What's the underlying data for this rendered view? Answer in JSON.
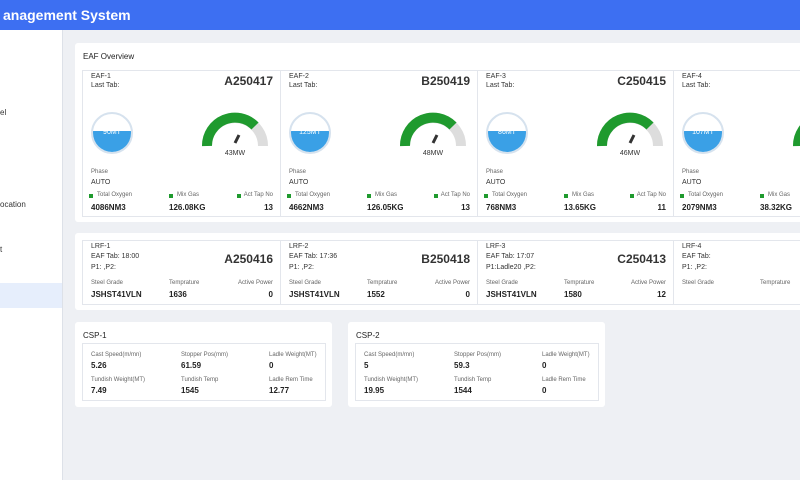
{
  "header": {
    "title": "anagement System"
  },
  "sidebar": {
    "items": [
      "el",
      "ocation",
      "t"
    ]
  },
  "eaf": {
    "title": "EAF Overview",
    "cards": [
      {
        "name": "EAF-1",
        "last_tab": "Last Tab:",
        "code": "A250417",
        "ladle": "90MT",
        "power": "43MW",
        "phase_label": "Phase",
        "phase": "AUTO",
        "metrics": [
          {
            "label": "Total Oxygen",
            "value": "4086NM3"
          },
          {
            "label": "Mix Gas",
            "value": "126.08KG"
          },
          {
            "label": "Act Tap No",
            "value": "13"
          }
        ]
      },
      {
        "name": "EAF-2",
        "last_tab": "Last Tab:",
        "code": "B250419",
        "ladle": "125MT",
        "power": "48MW",
        "phase_label": "Phase",
        "phase": "AUTO",
        "metrics": [
          {
            "label": "Total Oxygen",
            "value": "4662NM3"
          },
          {
            "label": "Mix Gas",
            "value": "126.05KG"
          },
          {
            "label": "Act Tap No",
            "value": "13"
          }
        ]
      },
      {
        "name": "EAF-3",
        "last_tab": "Last Tab:",
        "code": "C250415",
        "ladle": "86MT",
        "power": "46MW",
        "phase_label": "Phase",
        "phase": "AUTO",
        "metrics": [
          {
            "label": "Total Oxygen",
            "value": "768NM3"
          },
          {
            "label": "Mix Gas",
            "value": "13.65KG"
          },
          {
            "label": "Act Tap No",
            "value": "11"
          }
        ]
      },
      {
        "name": "EAF-4",
        "last_tab": "Last Tab:",
        "ladle": "107MT",
        "phase_label": "Phase",
        "phase": "AUTO",
        "metrics": [
          {
            "label": "Total Oxygen",
            "value": "2079NM3"
          },
          {
            "label": "Mix Gas",
            "value": "38.32KG"
          }
        ]
      }
    ]
  },
  "lrf": {
    "cards": [
      {
        "name": "LRF-1",
        "tab": "EAF Tab: 18:00",
        "code": "A250416",
        "p": "P1: ,P2:",
        "metrics": [
          {
            "label": "Steel Grade",
            "value": "JSHST41VLN"
          },
          {
            "label": "Temprature",
            "value": "1636"
          },
          {
            "label": "Active Power",
            "value": "0"
          }
        ]
      },
      {
        "name": "LRF-2",
        "tab": "EAF Tab: 17:36",
        "code": "B250418",
        "p": "P1: ,P2:",
        "metrics": [
          {
            "label": "Steel Grade",
            "value": "JSHST41VLN"
          },
          {
            "label": "Temprature",
            "value": "1552"
          },
          {
            "label": "Active Power",
            "value": "0"
          }
        ]
      },
      {
        "name": "LRF-3",
        "tab": "EAF Tab: 17:07",
        "code": "C250413",
        "p": "P1:Ladle20 ,P2:",
        "metrics": [
          {
            "label": "Steel Grade",
            "value": "JSHST41VLN"
          },
          {
            "label": "Temprature",
            "value": "1580"
          },
          {
            "label": "Active Power",
            "value": "12"
          }
        ]
      },
      {
        "name": "LRF-4",
        "tab": "EAF Tab:",
        "p": "P1: ,P2:",
        "metrics": [
          {
            "label": "Steel Grade"
          },
          {
            "label": "Temprature"
          }
        ]
      }
    ]
  },
  "csp": [
    {
      "title": "CSP-1",
      "rows": [
        [
          {
            "label": "Cast Speed(m/mn)",
            "value": "5.26"
          },
          {
            "label": "Stopper Pos(mm)",
            "value": "61.59"
          },
          {
            "label": "Ladle Weight(MT)",
            "value": "0"
          }
        ],
        [
          {
            "label": "Tundish Weight(MT)",
            "value": "7.49"
          },
          {
            "label": "Tundish Temp",
            "value": "1545"
          },
          {
            "label": "Ladle Rem Time",
            "value": "12.77"
          }
        ]
      ]
    },
    {
      "title": "CSP-2",
      "rows": [
        [
          {
            "label": "Cast Speed(m/mn)",
            "value": "5"
          },
          {
            "label": "Stopper Pos(mm)",
            "value": "59.3"
          },
          {
            "label": "Ladle Weight(MT)",
            "value": "0"
          }
        ],
        [
          {
            "label": "Tundish Weight(MT)",
            "value": "19.95"
          },
          {
            "label": "Tundish Temp",
            "value": "1544"
          },
          {
            "label": "Ladle Rem Time",
            "value": "0"
          }
        ]
      ]
    }
  ]
}
